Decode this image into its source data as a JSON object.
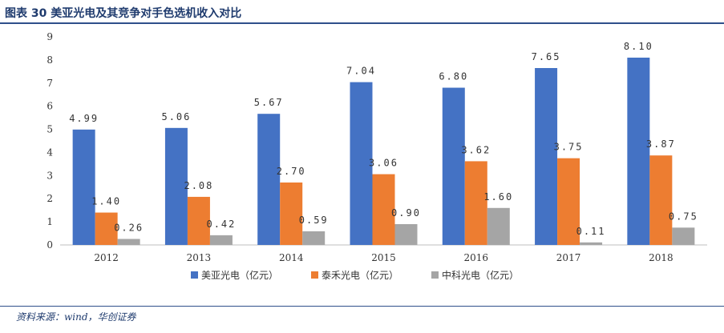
{
  "header": {
    "title": "图表 30  美亚光电及其竞争对手色选机收入对比"
  },
  "footer": {
    "source": "资料来源：wind，华创证券"
  },
  "chart_data": {
    "type": "bar",
    "title": "",
    "xlabel": "",
    "ylabel": "",
    "ylim": [
      0,
      9
    ],
    "yticks": [
      0,
      1,
      2,
      3,
      4,
      5,
      6,
      7,
      8,
      9
    ],
    "grid": false,
    "legend_position": "bottom",
    "categories": [
      "2012",
      "2013",
      "2014",
      "2015",
      "2016",
      "2017",
      "2018"
    ],
    "series": [
      {
        "name": "美亚光电（亿元）",
        "color": "#4472c4",
        "values": [
          4.99,
          5.06,
          5.67,
          7.04,
          6.8,
          7.65,
          8.1
        ],
        "labels": [
          "4.99",
          "5.06",
          "5.67",
          "7.04",
          "6.80",
          "7.65",
          "8.10"
        ]
      },
      {
        "name": "泰禾光电（亿元）",
        "color": "#ed7d31",
        "values": [
          1.4,
          2.08,
          2.7,
          3.06,
          3.62,
          3.75,
          3.87
        ],
        "labels": [
          "1.40",
          "2.08",
          "2.70",
          "3.06",
          "3.62",
          "3.75",
          "3.87"
        ]
      },
      {
        "name": "中科光电（亿元）",
        "color": "#a5a5a5",
        "values": [
          0.26,
          0.42,
          0.59,
          0.9,
          1.6,
          0.11,
          0.75
        ],
        "labels": [
          "0.26",
          "0.42",
          "0.59",
          "0.90",
          "1.60",
          "0.11",
          "0.75"
        ]
      }
    ]
  }
}
